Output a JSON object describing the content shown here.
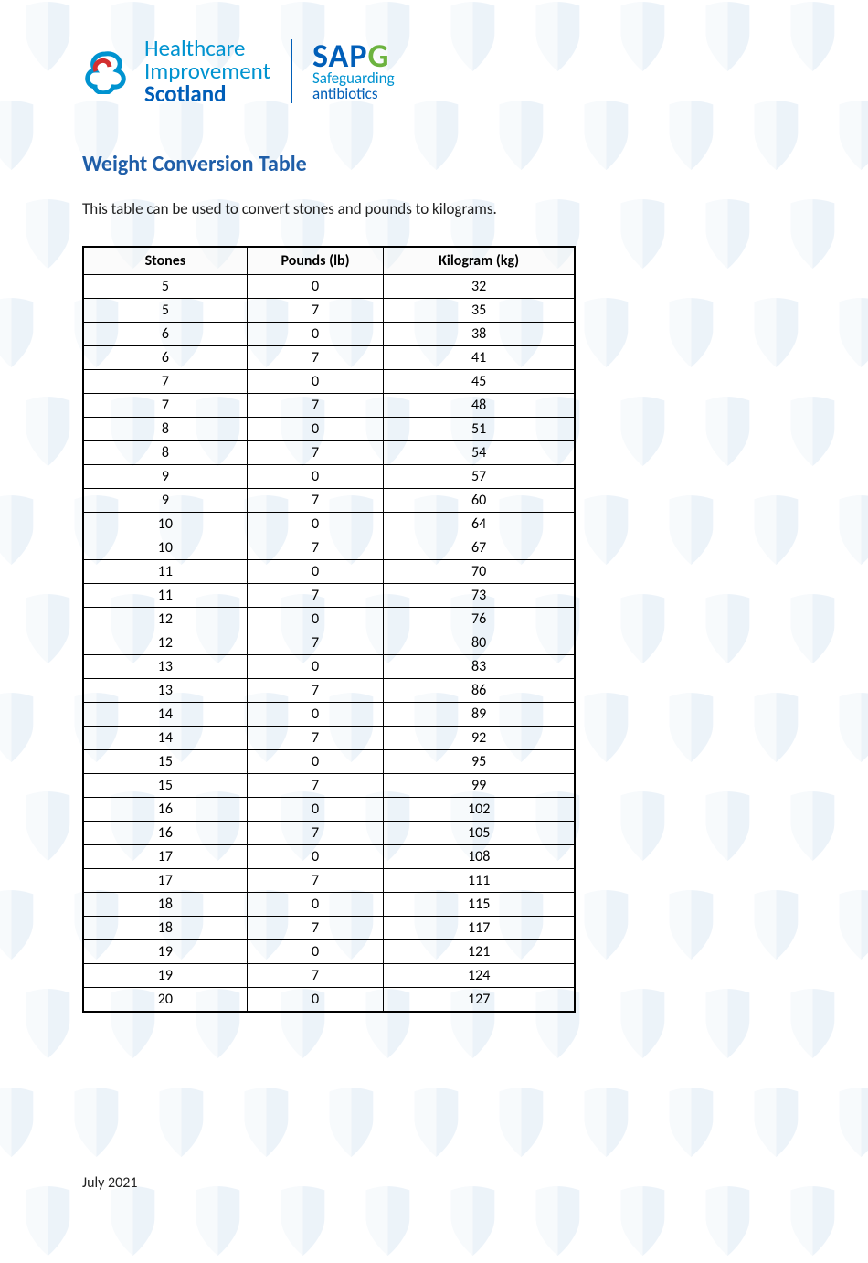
{
  "logos": {
    "his": {
      "line1": "Healthcare",
      "line2": "Improvement",
      "line3": "Scotland"
    },
    "sapg": {
      "big_prefix": "SAP",
      "big_g": "G",
      "sub1": "Safeguarding",
      "sub2": "antibiotics"
    }
  },
  "title": "Weight Conversion Table",
  "intro": "This table can be used to convert stones and pounds to kilograms.",
  "table": {
    "headers": {
      "c1": "Stones",
      "c2": "Pounds (lb)",
      "c3": "Kilogram (kg)"
    },
    "rows": [
      {
        "s": "5",
        "p": "0",
        "k": "32"
      },
      {
        "s": "5",
        "p": "7",
        "k": "35"
      },
      {
        "s": "6",
        "p": "0",
        "k": "38"
      },
      {
        "s": "6",
        "p": "7",
        "k": "41"
      },
      {
        "s": "7",
        "p": "0",
        "k": "45"
      },
      {
        "s": "7",
        "p": "7",
        "k": "48"
      },
      {
        "s": "8",
        "p": "0",
        "k": "51"
      },
      {
        "s": "8",
        "p": "7",
        "k": "54"
      },
      {
        "s": "9",
        "p": "0",
        "k": "57"
      },
      {
        "s": "9",
        "p": "7",
        "k": "60"
      },
      {
        "s": "10",
        "p": "0",
        "k": "64"
      },
      {
        "s": "10",
        "p": "7",
        "k": "67"
      },
      {
        "s": "11",
        "p": "0",
        "k": "70"
      },
      {
        "s": "11",
        "p": "7",
        "k": "73"
      },
      {
        "s": "12",
        "p": "0",
        "k": "76"
      },
      {
        "s": "12",
        "p": "7",
        "k": "80"
      },
      {
        "s": "13",
        "p": "0",
        "k": "83"
      },
      {
        "s": "13",
        "p": "7",
        "k": "86"
      },
      {
        "s": "14",
        "p": "0",
        "k": "89"
      },
      {
        "s": "14",
        "p": "7",
        "k": "92"
      },
      {
        "s": "15",
        "p": "0",
        "k": "95"
      },
      {
        "s": "15",
        "p": "7",
        "k": "99"
      },
      {
        "s": "16",
        "p": "0",
        "k": "102"
      },
      {
        "s": "16",
        "p": "7",
        "k": "105"
      },
      {
        "s": "17",
        "p": "0",
        "k": "108"
      },
      {
        "s": "17",
        "p": "7",
        "k": "111"
      },
      {
        "s": "18",
        "p": "0",
        "k": "115"
      },
      {
        "s": "18",
        "p": "7",
        "k": "117"
      },
      {
        "s": "19",
        "p": "0",
        "k": "121"
      },
      {
        "s": "19",
        "p": "7",
        "k": "124"
      },
      {
        "s": "20",
        "p": "0",
        "k": "127"
      }
    ]
  },
  "footer": "July 2021",
  "colors": {
    "title": "#1f5ea8",
    "his_light": "#0093d0",
    "his_dark": "#005eb8",
    "sapg_green": "#6cb33f",
    "watermark": "#005eb8"
  }
}
